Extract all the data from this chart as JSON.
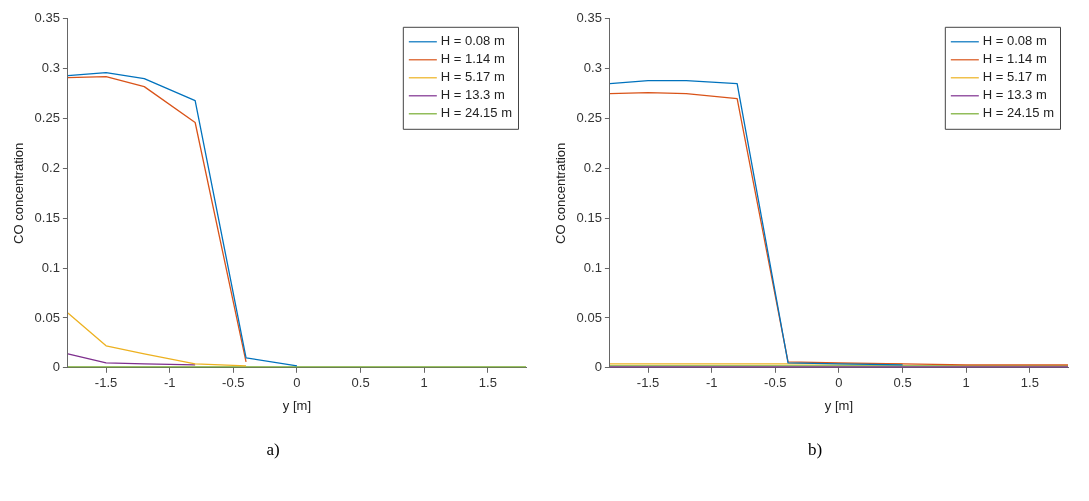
{
  "chart_data": [
    {
      "type": "line",
      "xlabel": "y [m]",
      "ylabel": "CO concentration",
      "annotations": [
        "a)"
      ],
      "xlim": [
        -1.8,
        1.8
      ],
      "xticks": [
        -1.5,
        -1,
        -0.5,
        0,
        0.5,
        1,
        1.5
      ],
      "ylim": [
        0,
        0.35
      ],
      "yticks": [
        0,
        0.05,
        0.1,
        0.15,
        0.2,
        0.25,
        0.3,
        0.35
      ],
      "x": [
        -1.8,
        -1.5,
        -1.2,
        -0.8,
        -0.4,
        0,
        0.5,
        1,
        1.5,
        1.8
      ],
      "grid": false,
      "legend": "top right",
      "marker": "none",
      "line_style": "solid",
      "series": [
        {
          "name": "H = 0.08 m",
          "color": "#0072bd",
          "values": [
            0.293,
            0.296,
            0.29,
            0.268,
            0.01,
            0.002,
            null,
            null,
            null,
            null
          ]
        },
        {
          "name": "H = 1.14 m",
          "color": "#d95319",
          "values": [
            0.291,
            0.292,
            0.282,
            0.246,
            0.006,
            null,
            null,
            null,
            null,
            null
          ]
        },
        {
          "name": "H = 5.17 m",
          "color": "#edb120",
          "values": [
            0.055,
            0.022,
            0.014,
            0.004,
            0.002,
            null,
            null,
            null,
            null,
            null
          ]
        },
        {
          "name": "H = 13.3 m",
          "color": "#7e2f8e",
          "values": [
            0.014,
            0.005,
            0.004,
            0.003,
            null,
            null,
            null,
            null,
            null,
            null
          ]
        },
        {
          "name": "H = 24.15 m",
          "color": "#77ac30",
          "values": [
            0.001,
            0.001,
            0.001,
            0.001,
            0.001,
            0.001,
            0.001,
            0.001,
            0.001,
            0.001
          ]
        }
      ]
    },
    {
      "type": "line",
      "xlabel": "y [m]",
      "ylabel": "CO concentration",
      "annotations": [
        "b)"
      ],
      "xlim": [
        -1.8,
        1.8
      ],
      "xticks": [
        -1.5,
        -1,
        -0.5,
        0,
        0.5,
        1,
        1.5
      ],
      "ylim": [
        0,
        0.35
      ],
      "yticks": [
        0,
        0.05,
        0.1,
        0.15,
        0.2,
        0.25,
        0.3,
        0.35
      ],
      "x": [
        -1.8,
        -1.5,
        -1.2,
        -0.8,
        -0.4,
        0,
        0.5,
        1,
        1.5,
        1.8
      ],
      "grid": false,
      "legend": "top right",
      "marker": "none",
      "line_style": "solid",
      "series": [
        {
          "name": "H = 0.08 m",
          "color": "#0072bd",
          "values": [
            0.285,
            0.288,
            0.288,
            0.285,
            0.005,
            0.004,
            0.003,
            null,
            null,
            null
          ]
        },
        {
          "name": "H = 1.14 m",
          "color": "#d95319",
          "values": [
            0.275,
            0.276,
            0.275,
            0.27,
            0.006,
            0.005,
            0.004,
            0.003,
            0.003,
            0.003
          ]
        },
        {
          "name": "H = 5.17 m",
          "color": "#edb120",
          "values": [
            0.004,
            0.004,
            0.004,
            0.004,
            0.004,
            0.004,
            0.004,
            null,
            null,
            null
          ]
        },
        {
          "name": "H = 13.3 m",
          "color": "#7e2f8e",
          "values": [
            0.001,
            0.001,
            0.001,
            0.001,
            0.001,
            0.001,
            0.001,
            0.001,
            0.001,
            0.001
          ]
        },
        {
          "name": "H = 24.15 m",
          "color": "#77ac30",
          "values": [
            0.002,
            0.002,
            0.002,
            0.002,
            0.002,
            0.002,
            0.002,
            0.002,
            0.002,
            0.002
          ]
        }
      ]
    }
  ]
}
